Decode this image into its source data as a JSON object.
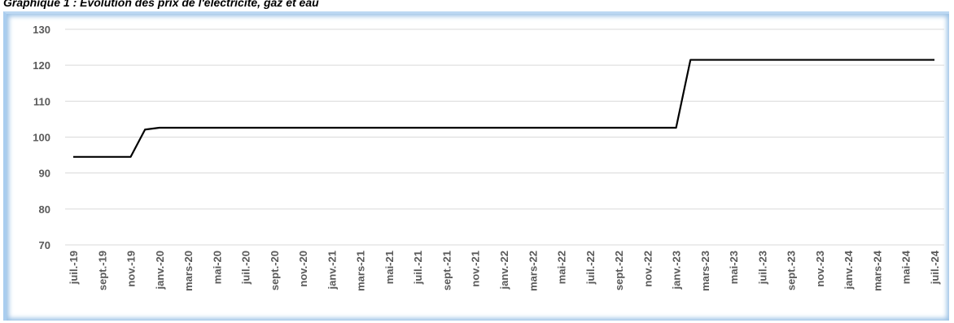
{
  "chart_data": {
    "type": "line",
    "title": "Graphique 1 : Évolution des prix de l'électricité, gaz et eau",
    "categories": [
      "juil.-19",
      null,
      "sept.-19",
      null,
      "nov.-19",
      null,
      "janv.-20",
      null,
      "mars-20",
      null,
      "mai-20",
      null,
      "juil.-20",
      null,
      "sept.-20",
      null,
      "nov.-20",
      null,
      "janv.-21",
      null,
      "mars-21",
      null,
      "mai-21",
      null,
      "juil.-21",
      null,
      "sept.-21",
      null,
      "nov.-21",
      null,
      "janv.-22",
      null,
      "mars-22",
      null,
      "mai-22",
      null,
      "juil.-22",
      null,
      "sept.-22",
      null,
      "nov.-22",
      null,
      "janv.-23",
      null,
      "mars-23",
      null,
      "mai-23",
      null,
      "juil.-23",
      null,
      "sept.-23",
      null,
      "nov.-23",
      null,
      "janv.-24",
      null,
      "mars-24",
      null,
      "mai-24",
      null,
      "juil.-24"
    ],
    "values": [
      94.5,
      94.5,
      94.5,
      94.5,
      94.5,
      102.1,
      102.6,
      102.6,
      102.6,
      102.6,
      102.6,
      102.6,
      102.6,
      102.6,
      102.6,
      102.6,
      102.6,
      102.6,
      102.6,
      102.6,
      102.6,
      102.6,
      102.6,
      102.6,
      102.6,
      102.6,
      102.6,
      102.6,
      102.6,
      102.6,
      102.6,
      102.6,
      102.6,
      102.6,
      102.6,
      102.6,
      102.6,
      102.6,
      102.6,
      102.6,
      102.6,
      102.6,
      102.6,
      121.5,
      121.5,
      121.5,
      121.5,
      121.5,
      121.5,
      121.5,
      121.5,
      121.5,
      121.5,
      121.5,
      121.5,
      121.5,
      121.5,
      121.5,
      121.5,
      121.5,
      121.5
    ],
    "color": "#000000",
    "ylim": [
      70,
      130
    ],
    "yticks": [
      70,
      80,
      90,
      100,
      110,
      120,
      130
    ],
    "grid": true
  }
}
